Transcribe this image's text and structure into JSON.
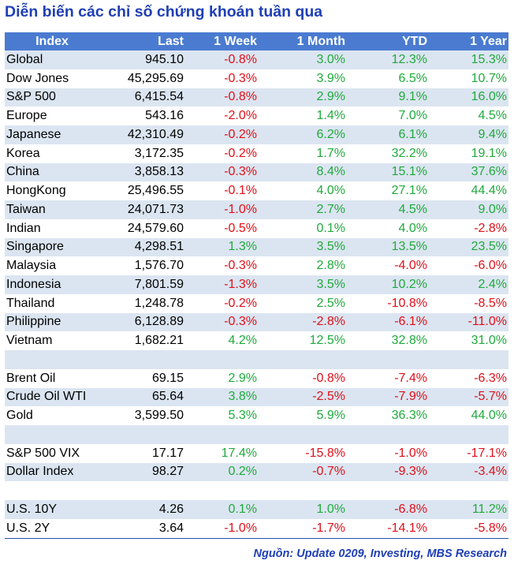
{
  "title": "Diễn biến các chỉ số chứng khoán tuần qua",
  "colors": {
    "title": "#1f3fb4",
    "header_bg": "#4a7bd0",
    "row_shade": "#dbe5f1",
    "positive": "#1faa3c",
    "negative": "#e0101a"
  },
  "table": {
    "headers": [
      "Index",
      "Last",
      "1 Week",
      "1 Month",
      "YTD",
      "1 Year"
    ],
    "rows": [
      {
        "cells": [
          "Global",
          "945.10",
          "-0.8%",
          "3.0%",
          "12.3%",
          "15.3%"
        ],
        "bg": "shade"
      },
      {
        "cells": [
          "Dow Jones",
          "45,295.69",
          "-0.3%",
          "3.9%",
          "6.5%",
          "10.7%"
        ],
        "bg": "white"
      },
      {
        "cells": [
          "S&P 500",
          "6,415.54",
          "-0.8%",
          "2.9%",
          "9.1%",
          "16.0%"
        ],
        "bg": "shade"
      },
      {
        "cells": [
          "Europe",
          "543.16",
          "-2.0%",
          "1.4%",
          "7.0%",
          "4.5%"
        ],
        "bg": "white"
      },
      {
        "cells": [
          "Japanese",
          "42,310.49",
          "-0.2%",
          "6.2%",
          "6.1%",
          "9.4%"
        ],
        "bg": "shade"
      },
      {
        "cells": [
          "Korea",
          "3,172.35",
          "-0.2%",
          "1.7%",
          "32.2%",
          "19.1%"
        ],
        "bg": "white"
      },
      {
        "cells": [
          "China",
          "3,858.13",
          "-0.3%",
          "8.4%",
          "15.1%",
          "37.6%"
        ],
        "bg": "shade"
      },
      {
        "cells": [
          "HongKong",
          "25,496.55",
          "-0.1%",
          "4.0%",
          "27.1%",
          "44.4%"
        ],
        "bg": "white"
      },
      {
        "cells": [
          "Taiwan",
          "24,071.73",
          "-1.0%",
          "2.7%",
          "4.5%",
          "9.0%"
        ],
        "bg": "shade"
      },
      {
        "cells": [
          "Indian",
          "24,579.60",
          "-0.5%",
          "0.1%",
          "4.0%",
          "-2.8%"
        ],
        "bg": "white"
      },
      {
        "cells": [
          "Singapore",
          "4,298.51",
          "1.3%",
          "3.5%",
          "13.5%",
          "23.5%"
        ],
        "bg": "shade"
      },
      {
        "cells": [
          "Malaysia",
          "1,576.70",
          "-0.3%",
          "2.8%",
          "-4.0%",
          "-6.0%"
        ],
        "bg": "white"
      },
      {
        "cells": [
          "Indonesia",
          "7,801.59",
          "-1.3%",
          "3.5%",
          "10.2%",
          "2.4%"
        ],
        "bg": "shade"
      },
      {
        "cells": [
          "Thailand",
          "1,248.78",
          "-0.2%",
          "2.5%",
          "-10.8%",
          "-8.5%"
        ],
        "bg": "white"
      },
      {
        "cells": [
          "Philippine",
          "6,128.89",
          "-0.3%",
          "-2.8%",
          "-6.1%",
          "-11.0%"
        ],
        "bg": "shade"
      },
      {
        "cells": [
          "Vietnam",
          "1,682.21",
          "4.2%",
          "12.5%",
          "32.8%",
          "31.0%"
        ],
        "bg": "white"
      },
      {
        "cells": [
          "",
          "",
          "",
          "",
          "",
          ""
        ],
        "bg": "shade"
      },
      {
        "cells": [
          "Brent Oil",
          "69.15",
          "2.9%",
          "-0.8%",
          "-7.4%",
          "-6.3%"
        ],
        "bg": "white"
      },
      {
        "cells": [
          "Crude Oil WTI",
          "65.64",
          "3.8%",
          "-2.5%",
          "-7.9%",
          "-5.7%"
        ],
        "bg": "shade"
      },
      {
        "cells": [
          "Gold",
          "3,599.50",
          "5.3%",
          "5.9%",
          "36.3%",
          "44.0%"
        ],
        "bg": "white"
      },
      {
        "cells": [
          "",
          "",
          "",
          "",
          "",
          ""
        ],
        "bg": "shade"
      },
      {
        "cells": [
          "S&P 500 VIX",
          "17.17",
          "17.4%",
          "-15.8%",
          "-1.0%",
          "-17.1%"
        ],
        "bg": "white"
      },
      {
        "cells": [
          "Dollar Index",
          "98.27",
          "0.2%",
          "-0.7%",
          "-9.3%",
          "-3.4%"
        ],
        "bg": "shade"
      },
      {
        "cells": [
          "",
          "",
          "",
          "",
          "",
          ""
        ],
        "bg": "white"
      },
      {
        "cells": [
          "U.S. 10Y",
          "4.26",
          "0.1%",
          "1.0%",
          "-6.8%",
          "11.2%"
        ],
        "bg": "shade"
      },
      {
        "cells": [
          "U.S. 2Y",
          "3.64",
          "-1.0%",
          "-1.7%",
          "-14.1%",
          "-5.8%"
        ],
        "bg": "white"
      }
    ]
  },
  "source": "Nguồn: Update 0209, Investing, MBS Research"
}
